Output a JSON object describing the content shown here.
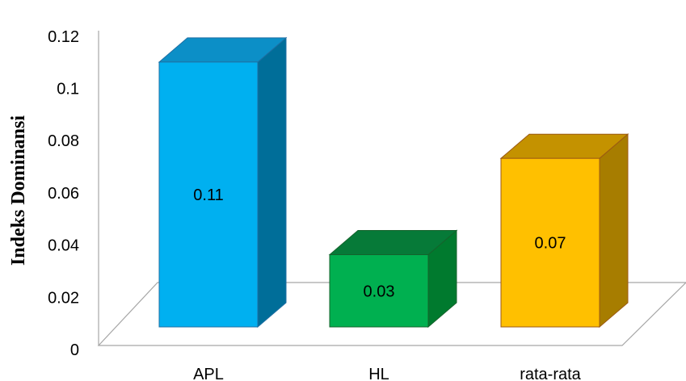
{
  "chart_data": {
    "type": "bar",
    "style": "3d-column",
    "categories": [
      "APL",
      "HL",
      "rata-rata"
    ],
    "values": [
      0.11,
      0.03,
      0.07
    ],
    "data_labels": [
      "0.11",
      "0.03",
      "0.07"
    ],
    "ylabel": "Indeks Dominansi",
    "ylim": [
      0,
      0.12
    ],
    "yticks": [
      "0",
      "0.02",
      "0.04",
      "0.06",
      "0.08",
      "0.1",
      "0.12"
    ],
    "grid": false,
    "legend": "none",
    "colors": [
      {
        "front": "#00b0f0",
        "side": "#006e99",
        "top": "#0c8fc7",
        "edge": "#1f6fa3"
      },
      {
        "front": "#00b050",
        "side": "#007a2e",
        "top": "#067a38",
        "edge": "#15632c"
      },
      {
        "front": "#ffc000",
        "side": "#a77d00",
        "top": "#c49200",
        "edge": "#9c5a13"
      }
    ]
  }
}
